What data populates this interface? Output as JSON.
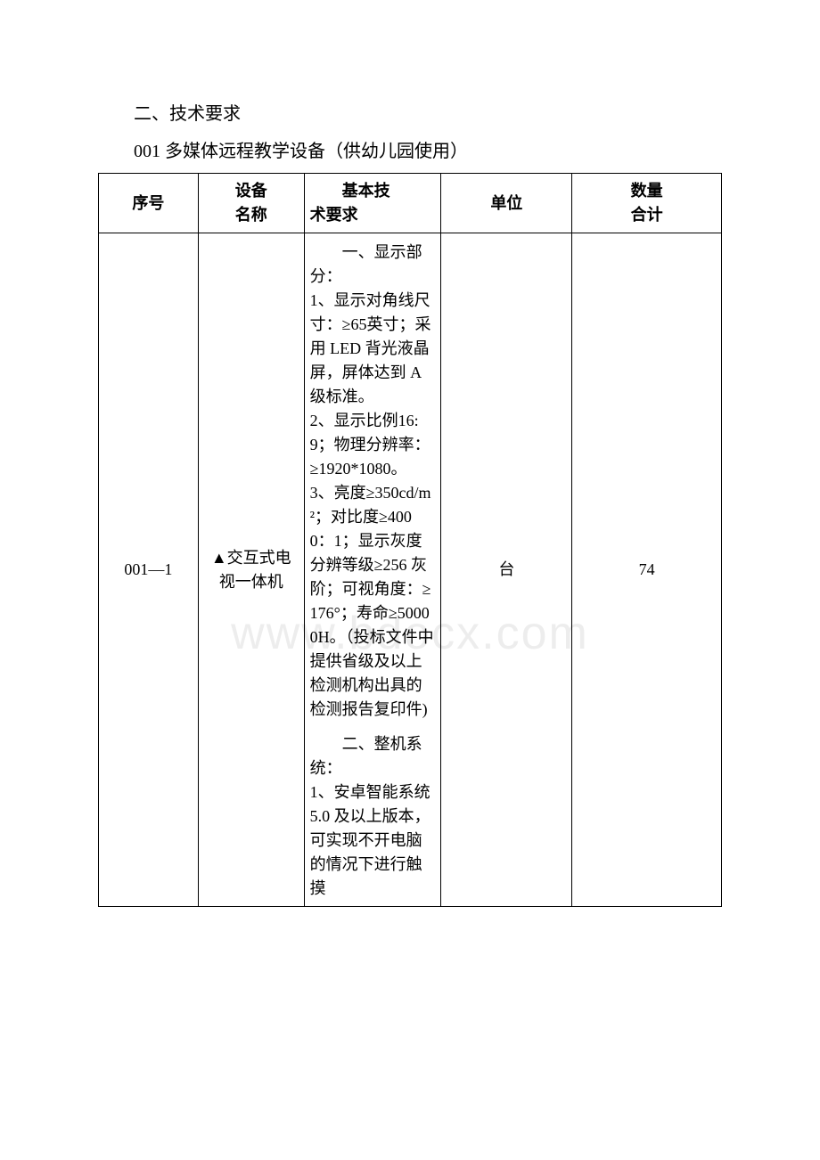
{
  "watermark": "www.bdocx.com",
  "heading": "二、技术要求",
  "subheading": "001 多媒体远程教学设备（供幼儿园使用）",
  "table": {
    "columns": {
      "seq": "序号",
      "name_line1": "设备",
      "name_line2": "名称",
      "tech_line1": "基本技",
      "tech_line2": "术要求",
      "unit": "单位",
      "qty_line1": "数量",
      "qty_line2": "合计"
    },
    "row": {
      "seq": "001—1",
      "name": "▲交互式电视一体机",
      "unit": "台",
      "qty": "74",
      "tech_section1_title": "一、显示部分：",
      "tech_section1_body": "1、显示对角线尺寸：≥65英寸；采用 LED 背光液晶屏，屏体达到 A 级标准。\n2、显示比例16:9；物理分辨率：≥1920*1080。\n3、亮度≥350cd/m²；对比度≥4000：1；显示灰度分辨等级≥256 灰阶；可视角度：≥176°；寿命≥50000H。（投标文件中提供省级及以上检测机构出具的检测报告复印件)",
      "tech_section2_title": "二、整机系统：",
      "tech_section2_body": "1、安卓智能系统 5.0 及以上版本，可实现不开电脑的情况下进行触摸"
    }
  }
}
